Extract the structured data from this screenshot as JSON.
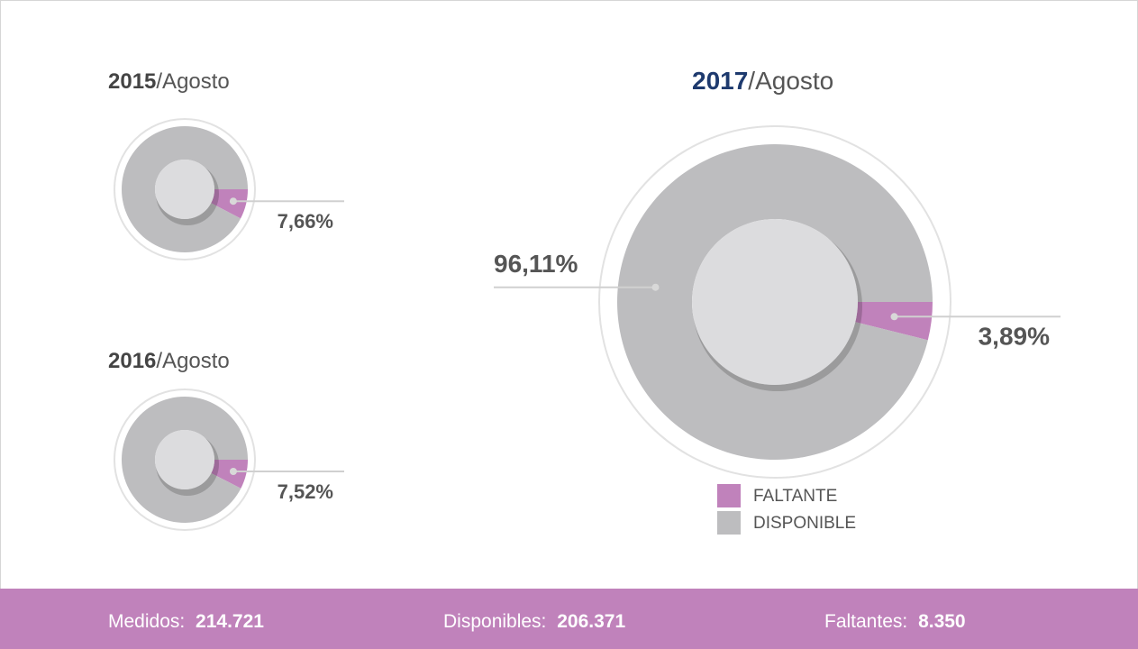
{
  "chart_data": [
    {
      "type": "pie",
      "title_bold": "2015",
      "title_rest": "/Agosto",
      "values": [
        7.66,
        92.34
      ],
      "value_labels": [
        "7,66%",
        null
      ]
    },
    {
      "type": "pie",
      "title_bold": "2016",
      "title_rest": "/Agosto",
      "values": [
        7.52,
        92.48
      ],
      "value_labels": [
        "7,52%",
        null
      ]
    },
    {
      "type": "pie",
      "title_bold": "2017",
      "title_rest": "/Agosto",
      "values": [
        3.89,
        96.11
      ],
      "value_labels": [
        "3,89%",
        "96,11%"
      ]
    }
  ],
  "legend": [
    {
      "name": "FALTANTE",
      "color": "#c082bb"
    },
    {
      "name": "DISPONIBLE",
      "color": "#bdbdbf"
    }
  ],
  "footer": [
    {
      "label": "Medidos: ",
      "value": "214.721"
    },
    {
      "label": "Disponibles: ",
      "value": "206.371"
    },
    {
      "label": "Faltantes: ",
      "value": "8.350"
    }
  ]
}
